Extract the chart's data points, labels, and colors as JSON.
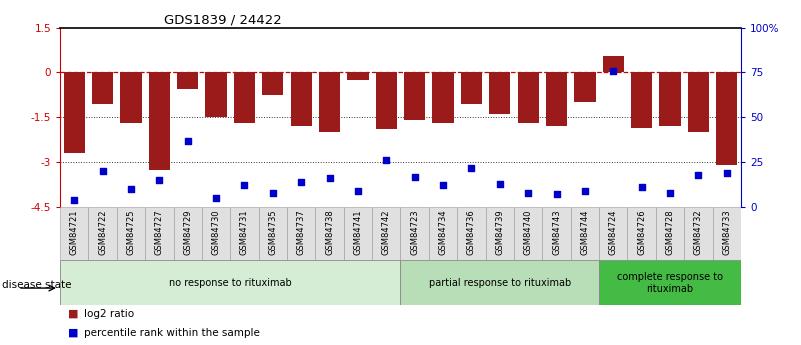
{
  "title": "GDS1839 / 24422",
  "samples": [
    "GSM84721",
    "GSM84722",
    "GSM84725",
    "GSM84727",
    "GSM84729",
    "GSM84730",
    "GSM84731",
    "GSM84735",
    "GSM84737",
    "GSM84738",
    "GSM84741",
    "GSM84742",
    "GSM84723",
    "GSM84734",
    "GSM84736",
    "GSM84739",
    "GSM84740",
    "GSM84743",
    "GSM84744",
    "GSM84724",
    "GSM84726",
    "GSM84728",
    "GSM84732",
    "GSM84733"
  ],
  "log2_ratio": [
    -2.7,
    -1.05,
    -1.7,
    -3.25,
    -0.55,
    -1.5,
    -1.7,
    -0.75,
    -1.8,
    -2.0,
    -0.25,
    -1.9,
    -1.6,
    -1.7,
    -1.05,
    -1.4,
    -1.7,
    -1.8,
    -1.0,
    0.55,
    -1.85,
    -1.8,
    -2.0,
    -3.1
  ],
  "percentile_rank": [
    4,
    20,
    10,
    15,
    37,
    5,
    12,
    8,
    14,
    16,
    9,
    26,
    17,
    12,
    22,
    13,
    8,
    7,
    9,
    76,
    11,
    8,
    18,
    19
  ],
  "bar_color": "#9B1A1A",
  "dot_color": "#0000CC",
  "ylim_left": [
    -4.5,
    1.5
  ],
  "ylim_right": [
    0,
    100
  ],
  "yticks_left": [
    1.5,
    0.0,
    -1.5,
    -3.0,
    -4.5
  ],
  "ytick_labels_left": [
    "1.5",
    "0",
    "-1.5",
    "-3",
    "-4.5"
  ],
  "yticks_right": [
    0,
    25,
    50,
    75,
    100
  ],
  "ytick_labels_right": [
    "0",
    "25",
    "50",
    "75",
    "100%"
  ],
  "groups": [
    {
      "label": "no response to rituximab",
      "start": 0,
      "end": 12,
      "color": "#D4EDD4"
    },
    {
      "label": "partial response to rituximab",
      "start": 12,
      "end": 19,
      "color": "#B8DEB8"
    },
    {
      "label": "complete response to\nrituximab",
      "start": 19,
      "end": 24,
      "color": "#44BB44"
    }
  ],
  "disease_state_label": "disease state",
  "legend_items": [
    {
      "label": "log2 ratio",
      "color": "#9B1A1A",
      "marker": "s"
    },
    {
      "label": "percentile rank within the sample",
      "color": "#0000CC",
      "marker": "s"
    }
  ],
  "hline_zero_color": "#CC0000",
  "hline_dot_color": "#333333",
  "bg_color": "#FFFFFF"
}
